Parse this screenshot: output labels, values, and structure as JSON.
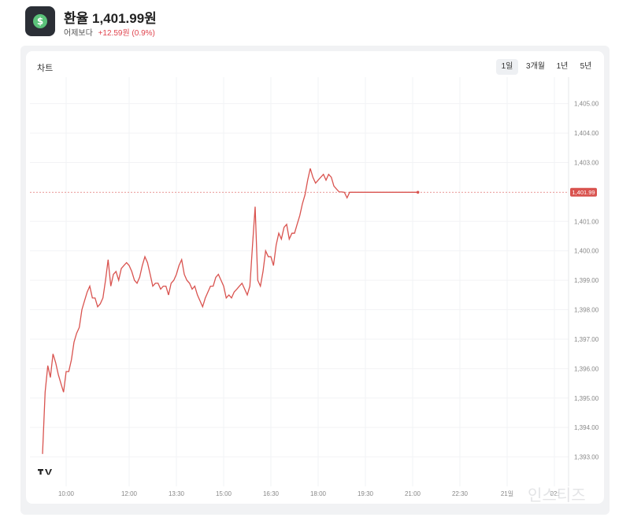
{
  "header": {
    "title": "환율 1,401.99원",
    "change_label": "어제보다",
    "change_value": "+12.59원 (0.9%)",
    "icon": "dollar-coin-icon",
    "colors": {
      "icon_bg": "#2b2f36",
      "coin": "#5bc27a",
      "delta": "#e0444e"
    }
  },
  "card": {
    "title": "차트",
    "tabs": [
      {
        "label": "1일",
        "active": true
      },
      {
        "label": "3개월",
        "active": false
      },
      {
        "label": "1년",
        "active": false
      },
      {
        "label": "5년",
        "active": false
      }
    ]
  },
  "chart_data": {
    "type": "line",
    "title": "",
    "xlabel": "",
    "ylabel": "",
    "x_ticks": [
      "10:00",
      "12:00",
      "13:30",
      "15:00",
      "16:30",
      "18:00",
      "19:30",
      "21:00",
      "22:30",
      "21일",
      "02:"
    ],
    "y_ticks": [
      "1,405.00",
      "1,404.00",
      "1,403.00",
      "1,401.00",
      "1,400.00",
      "1,399.00",
      "1,398.00",
      "1,397.00",
      "1,396.00",
      "1,395.00",
      "1,394.00",
      "1,393.00"
    ],
    "ylim": [
      1392.0,
      1405.9
    ],
    "current_value": 1401.99,
    "current_label": "1,401.99",
    "line_color": "#d9534f",
    "grid": true,
    "series": [
      {
        "x": [
          "09:15",
          "09:20",
          "09:25",
          "09:30",
          "09:35",
          "09:40",
          "09:45",
          "09:50",
          "09:55",
          "10:00",
          "10:05",
          "10:10",
          "10:15",
          "10:20",
          "10:25",
          "10:30",
          "10:35",
          "10:40",
          "10:45",
          "10:50",
          "10:55",
          "11:00",
          "11:05",
          "11:10",
          "11:15",
          "11:20",
          "11:25",
          "11:30",
          "11:35",
          "11:40",
          "11:45",
          "11:50",
          "11:55",
          "12:00",
          "12:05",
          "12:10",
          "12:15",
          "12:20",
          "12:25",
          "12:30",
          "12:35",
          "12:40",
          "12:45",
          "12:50",
          "12:55",
          "13:00",
          "13:05",
          "13:10",
          "13:15",
          "13:20",
          "13:25",
          "13:30",
          "13:35",
          "13:40",
          "13:45",
          "13:50",
          "13:55",
          "14:00",
          "14:05",
          "14:10",
          "14:15",
          "14:20",
          "14:25",
          "14:30",
          "14:35",
          "14:40",
          "14:45",
          "14:50",
          "14:55",
          "15:00",
          "15:05",
          "15:10",
          "15:15",
          "15:20",
          "15:25",
          "15:30",
          "15:35",
          "15:40",
          "15:45",
          "15:50",
          "15:55",
          "16:00",
          "16:05",
          "16:10",
          "16:15",
          "16:20",
          "16:25",
          "16:30",
          "16:35",
          "16:40",
          "16:45",
          "16:50",
          "16:55",
          "17:00",
          "17:05",
          "17:10",
          "17:15",
          "17:20",
          "17:25",
          "17:30",
          "17:35",
          "17:40",
          "17:45",
          "17:50",
          "17:55",
          "18:00",
          "18:05",
          "18:10",
          "18:15",
          "18:20",
          "18:25",
          "18:30",
          "18:35",
          "18:40",
          "18:45",
          "18:50",
          "18:55",
          "19:00",
          "19:05",
          "19:10",
          "19:15",
          "19:20",
          "19:25",
          "19:30",
          "19:35",
          "19:40",
          "19:45",
          "19:50",
          "19:55",
          "20:00",
          "20:05",
          "20:10",
          "20:15",
          "20:20",
          "20:25",
          "20:30",
          "20:35",
          "20:40",
          "20:45",
          "20:50",
          "20:55",
          "21:00",
          "21:05",
          "21:10"
        ],
        "y": [
          1393.1,
          1395.2,
          1396.1,
          1395.7,
          1396.5,
          1396.2,
          1395.8,
          1395.5,
          1395.2,
          1395.9,
          1395.9,
          1396.3,
          1396.9,
          1397.2,
          1397.4,
          1398.0,
          1398.3,
          1398.6,
          1398.8,
          1398.4,
          1398.4,
          1398.1,
          1398.2,
          1398.4,
          1399.0,
          1399.7,
          1398.8,
          1399.2,
          1399.3,
          1399.0,
          1399.4,
          1399.5,
          1399.6,
          1399.5,
          1399.3,
          1399.0,
          1398.9,
          1399.1,
          1399.5,
          1399.8,
          1399.6,
          1399.2,
          1398.8,
          1398.9,
          1398.9,
          1398.7,
          1398.8,
          1398.8,
          1398.5,
          1398.9,
          1399.0,
          1399.2,
          1399.5,
          1399.7,
          1399.2,
          1399.0,
          1398.9,
          1398.7,
          1398.8,
          1398.5,
          1398.3,
          1398.1,
          1398.4,
          1398.6,
          1398.8,
          1398.8,
          1399.1,
          1399.2,
          1399.0,
          1398.8,
          1398.4,
          1398.5,
          1398.4,
          1398.6,
          1398.7,
          1398.8,
          1398.9,
          1398.7,
          1398.5,
          1398.8,
          1400.2,
          1401.5,
          1399.0,
          1398.8,
          1399.3,
          1400.0,
          1399.8,
          1399.8,
          1399.5,
          1400.2,
          1400.6,
          1400.4,
          1400.8,
          1400.9,
          1400.4,
          1400.6,
          1400.6,
          1400.9,
          1401.2,
          1401.6,
          1401.9,
          1402.4,
          1402.8,
          1402.5,
          1402.3,
          1402.4,
          1402.5,
          1402.6,
          1402.4,
          1402.6,
          1402.5,
          1402.2,
          1402.1,
          1402.0,
          1402.0,
          1401.99,
          1401.8,
          1401.99,
          1401.99,
          1401.99,
          1401.99,
          1401.99,
          1401.99,
          1401.99,
          1401.99,
          1401.99,
          1401.99,
          1401.99,
          1401.99,
          1401.99,
          1401.99,
          1401.99,
          1401.99,
          1401.99,
          1401.99,
          1401.99,
          1401.99,
          1401.99,
          1401.99,
          1401.99,
          1401.99,
          1401.99,
          1401.99,
          1401.99
        ]
      }
    ]
  },
  "tv_logo": "tradingview-logo-icon",
  "watermark": "인스티즈"
}
